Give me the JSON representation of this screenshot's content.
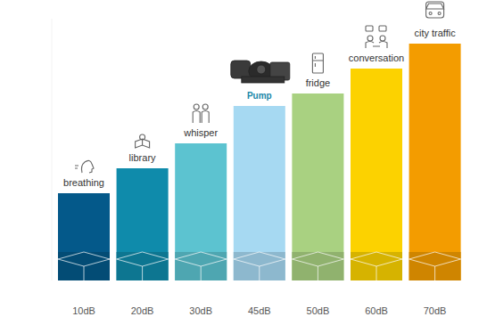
{
  "chart_data": {
    "type": "bar",
    "categories": [
      "breathing",
      "library",
      "whisper",
      "Pump",
      "fridge",
      "conversation",
      "city traffic"
    ],
    "values": [
      10,
      20,
      30,
      45,
      50,
      60,
      70
    ],
    "value_labels": [
      "10dB",
      "20dB",
      "30dB",
      "45dB",
      "50dB",
      "60dB",
      "70dB"
    ],
    "colors": [
      "#04598a",
      "#0f8bab",
      "#5cc3d0",
      "#a6d9f2",
      "#a9d181",
      "#fcd200",
      "#f39c00"
    ],
    "ylim": [
      -25,
      80
    ],
    "data_labels": true,
    "tick_labels": false,
    "grid": false
  }
}
